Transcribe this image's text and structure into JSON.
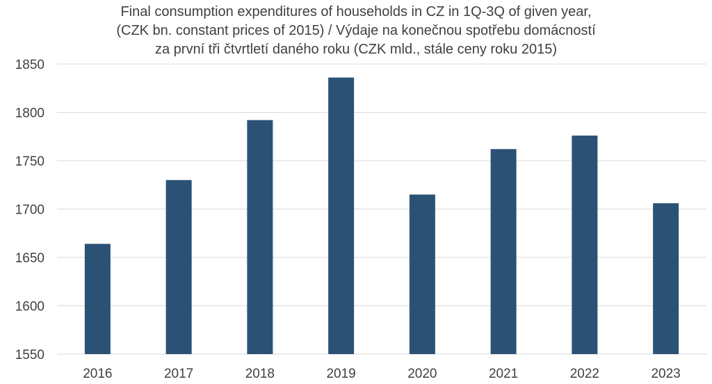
{
  "chart_data": {
    "type": "bar",
    "title_lines": [
      "Final consumption expenditures of households in CZ in 1Q-3Q of given year,",
      "(CZK bn. constant prices of 2015) / Výdaje na konečnou spotřebu domácností",
      "za první tři čtvrtletí daného roku (CZK mld., stále ceny roku 2015)"
    ],
    "categories": [
      "2016",
      "2017",
      "2018",
      "2019",
      "2020",
      "2021",
      "2022",
      "2023"
    ],
    "values": [
      1664,
      1730,
      1792,
      1836,
      1715,
      1762,
      1776,
      1706
    ],
    "ylim": [
      1550,
      1850
    ],
    "yticks": [
      1550,
      1600,
      1650,
      1700,
      1750,
      1800,
      1850
    ],
    "grid": true,
    "legend": "none",
    "bar_color": "#2b5275",
    "grid_color": "#d9d9d9"
  }
}
